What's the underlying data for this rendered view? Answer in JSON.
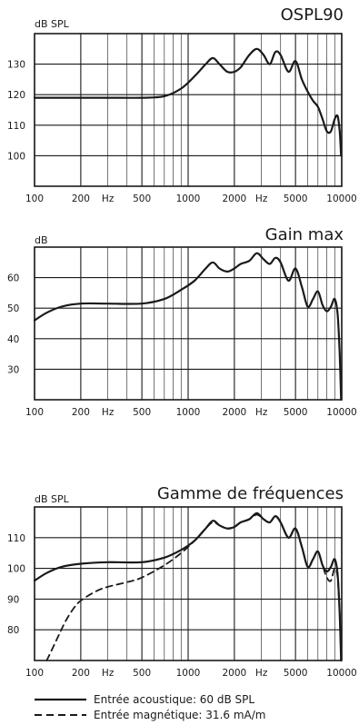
{
  "chart_data": [
    {
      "type": "line",
      "title": "OSPL90",
      "ylabel": "dB SPL",
      "xscale": "log",
      "xlim": [
        100,
        10000
      ],
      "ylim": [
        90,
        140
      ],
      "yticks": [
        100,
        110,
        120,
        130
      ],
      "xtick_labels": [
        "100",
        "200",
        "Hz",
        "500",
        "1000",
        "2000",
        "Hz",
        "5000",
        "10000"
      ],
      "grid": true,
      "series": [
        {
          "style": "solid",
          "x": [
            100,
            150,
            200,
            300,
            500,
            700,
            900,
            1100,
            1300,
            1450,
            1600,
            1800,
            2000,
            2200,
            2500,
            2800,
            3100,
            3400,
            3700,
            4000,
            4500,
            5000,
            5500,
            6000,
            6500,
            7000,
            7500,
            8000,
            8500,
            9000,
            9400,
            9700,
            9900
          ],
          "y": [
            119,
            119,
            119,
            119,
            119,
            119.5,
            122,
            126,
            130,
            132,
            130,
            127.5,
            127.5,
            129,
            133,
            135,
            133,
            130,
            134,
            133,
            127.5,
            131,
            125,
            121,
            118,
            116,
            112,
            108,
            108,
            112,
            113,
            108,
            100
          ]
        }
      ]
    },
    {
      "type": "line",
      "title": "Gain max",
      "ylabel": "dB",
      "xscale": "log",
      "xlim": [
        100,
        10000
      ],
      "ylim": [
        20,
        70
      ],
      "yticks": [
        30,
        40,
        50,
        60
      ],
      "xtick_labels": [
        "100",
        "200",
        "Hz",
        "500",
        "1000",
        "2000",
        "Hz",
        "5000",
        "10000"
      ],
      "grid": true,
      "series": [
        {
          "style": "solid",
          "x": [
            100,
            120,
            150,
            200,
            300,
            500,
            700,
            900,
            1100,
            1300,
            1450,
            1600,
            1800,
            2000,
            2200,
            2500,
            2800,
            3100,
            3400,
            3700,
            4000,
            4500,
            5000,
            5500,
            6000,
            6500,
            7000,
            7500,
            8000,
            8500,
            9000,
            9400,
            9700,
            9900
          ],
          "y": [
            46,
            48.5,
            50.5,
            51.5,
            51.5,
            51.5,
            53,
            56,
            59,
            63,
            65,
            63,
            62,
            63,
            64.5,
            65.5,
            68,
            66,
            64.5,
            66.5,
            65,
            59,
            63,
            57,
            50.5,
            53,
            55.5,
            51,
            49,
            50.5,
            53,
            48,
            35,
            20
          ]
        }
      ]
    },
    {
      "type": "line",
      "title": "Gamme de fréquences",
      "ylabel": "dB SPL",
      "xscale": "log",
      "xlim": [
        100,
        10000
      ],
      "ylim": [
        70,
        120
      ],
      "yticks": [
        80,
        90,
        100,
        110
      ],
      "xtick_labels": [
        "100",
        "200",
        "Hz",
        "500",
        "1000",
        "2000",
        "Hz",
        "5000",
        "10000"
      ],
      "grid": true,
      "series": [
        {
          "name": "Entrée acoustique: 60 dB SPL",
          "style": "solid",
          "x": [
            100,
            120,
            150,
            200,
            300,
            500,
            700,
            900,
            1100,
            1300,
            1450,
            1600,
            1800,
            2000,
            2200,
            2500,
            2800,
            3100,
            3400,
            3700,
            4000,
            4500,
            5000,
            5500,
            6000,
            6500,
            7000,
            7500,
            8000,
            8500,
            9000,
            9400,
            9700,
            9900
          ],
          "y": [
            96,
            98.5,
            100.5,
            101.5,
            102,
            102,
            103.5,
            106,
            109,
            113,
            115.5,
            114,
            113,
            113.5,
            115,
            116,
            118,
            116,
            115,
            117,
            115,
            110,
            113,
            107,
            100.5,
            103,
            105.5,
            101,
            99,
            100.5,
            103,
            98,
            85,
            70
          ]
        },
        {
          "name": "Entrée magnétique: 31.6 mA/m",
          "style": "dashed",
          "x": [
            120,
            140,
            160,
            180,
            200,
            250,
            300,
            400,
            500,
            700,
            900,
            1100,
            1300,
            1450,
            1600,
            1800,
            2000,
            2200,
            2500,
            2800,
            3100,
            3400,
            3700,
            4000,
            4500,
            5000,
            5500,
            6000,
            6500,
            7000,
            7500,
            8000,
            8500,
            9000,
            9400,
            9700,
            9900
          ],
          "y": [
            70,
            77,
            83,
            87,
            89.5,
            92.5,
            94,
            95.5,
            97,
            101,
            105,
            109,
            113,
            115,
            114,
            113,
            113.5,
            115,
            116,
            117.5,
            116,
            115,
            117,
            115,
            110,
            113,
            107,
            100.5,
            103,
            105.5,
            101,
            97,
            96,
            100,
            97,
            85,
            70
          ]
        }
      ]
    }
  ],
  "legend": [
    {
      "label": "Entrée acoustique: 60 dB SPL",
      "style": "solid"
    },
    {
      "label": "Entrée magnétique: 31.6 mA/m",
      "style": "dashed"
    }
  ]
}
